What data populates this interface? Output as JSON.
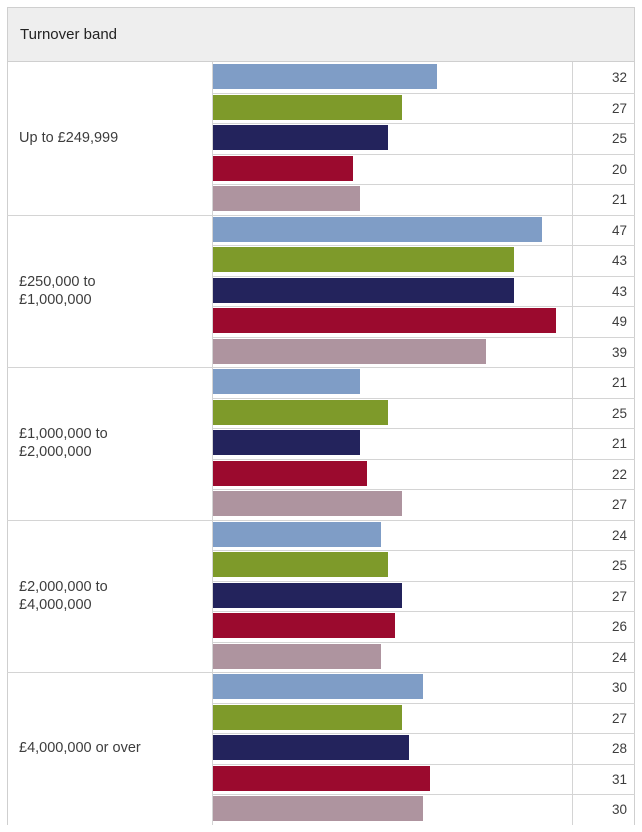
{
  "chart_data": {
    "type": "bar",
    "orientation": "horizontal",
    "title": "",
    "row_header": "Turnover band",
    "categories": [
      "Up to £249,999",
      "£250,000 to £1,000,000",
      "£1,000,000 to £2,000,000",
      "£2,000,000 to £4,000,000",
      "£4,000,000 or over"
    ],
    "series": [
      {
        "color": "#7f9dc6",
        "values": [
          32,
          47,
          21,
          24,
          30
        ]
      },
      {
        "color": "#7e9a2a",
        "values": [
          27,
          43,
          25,
          25,
          27
        ]
      },
      {
        "color": "#23235c",
        "values": [
          25,
          43,
          21,
          27,
          28
        ]
      },
      {
        "color": "#9b0a2e",
        "values": [
          20,
          49,
          22,
          26,
          31
        ]
      },
      {
        "color": "#ae949f",
        "values": [
          21,
          39,
          27,
          24,
          30
        ]
      }
    ],
    "xlim": [
      0,
      50
    ],
    "grid": false,
    "legend": "none"
  }
}
